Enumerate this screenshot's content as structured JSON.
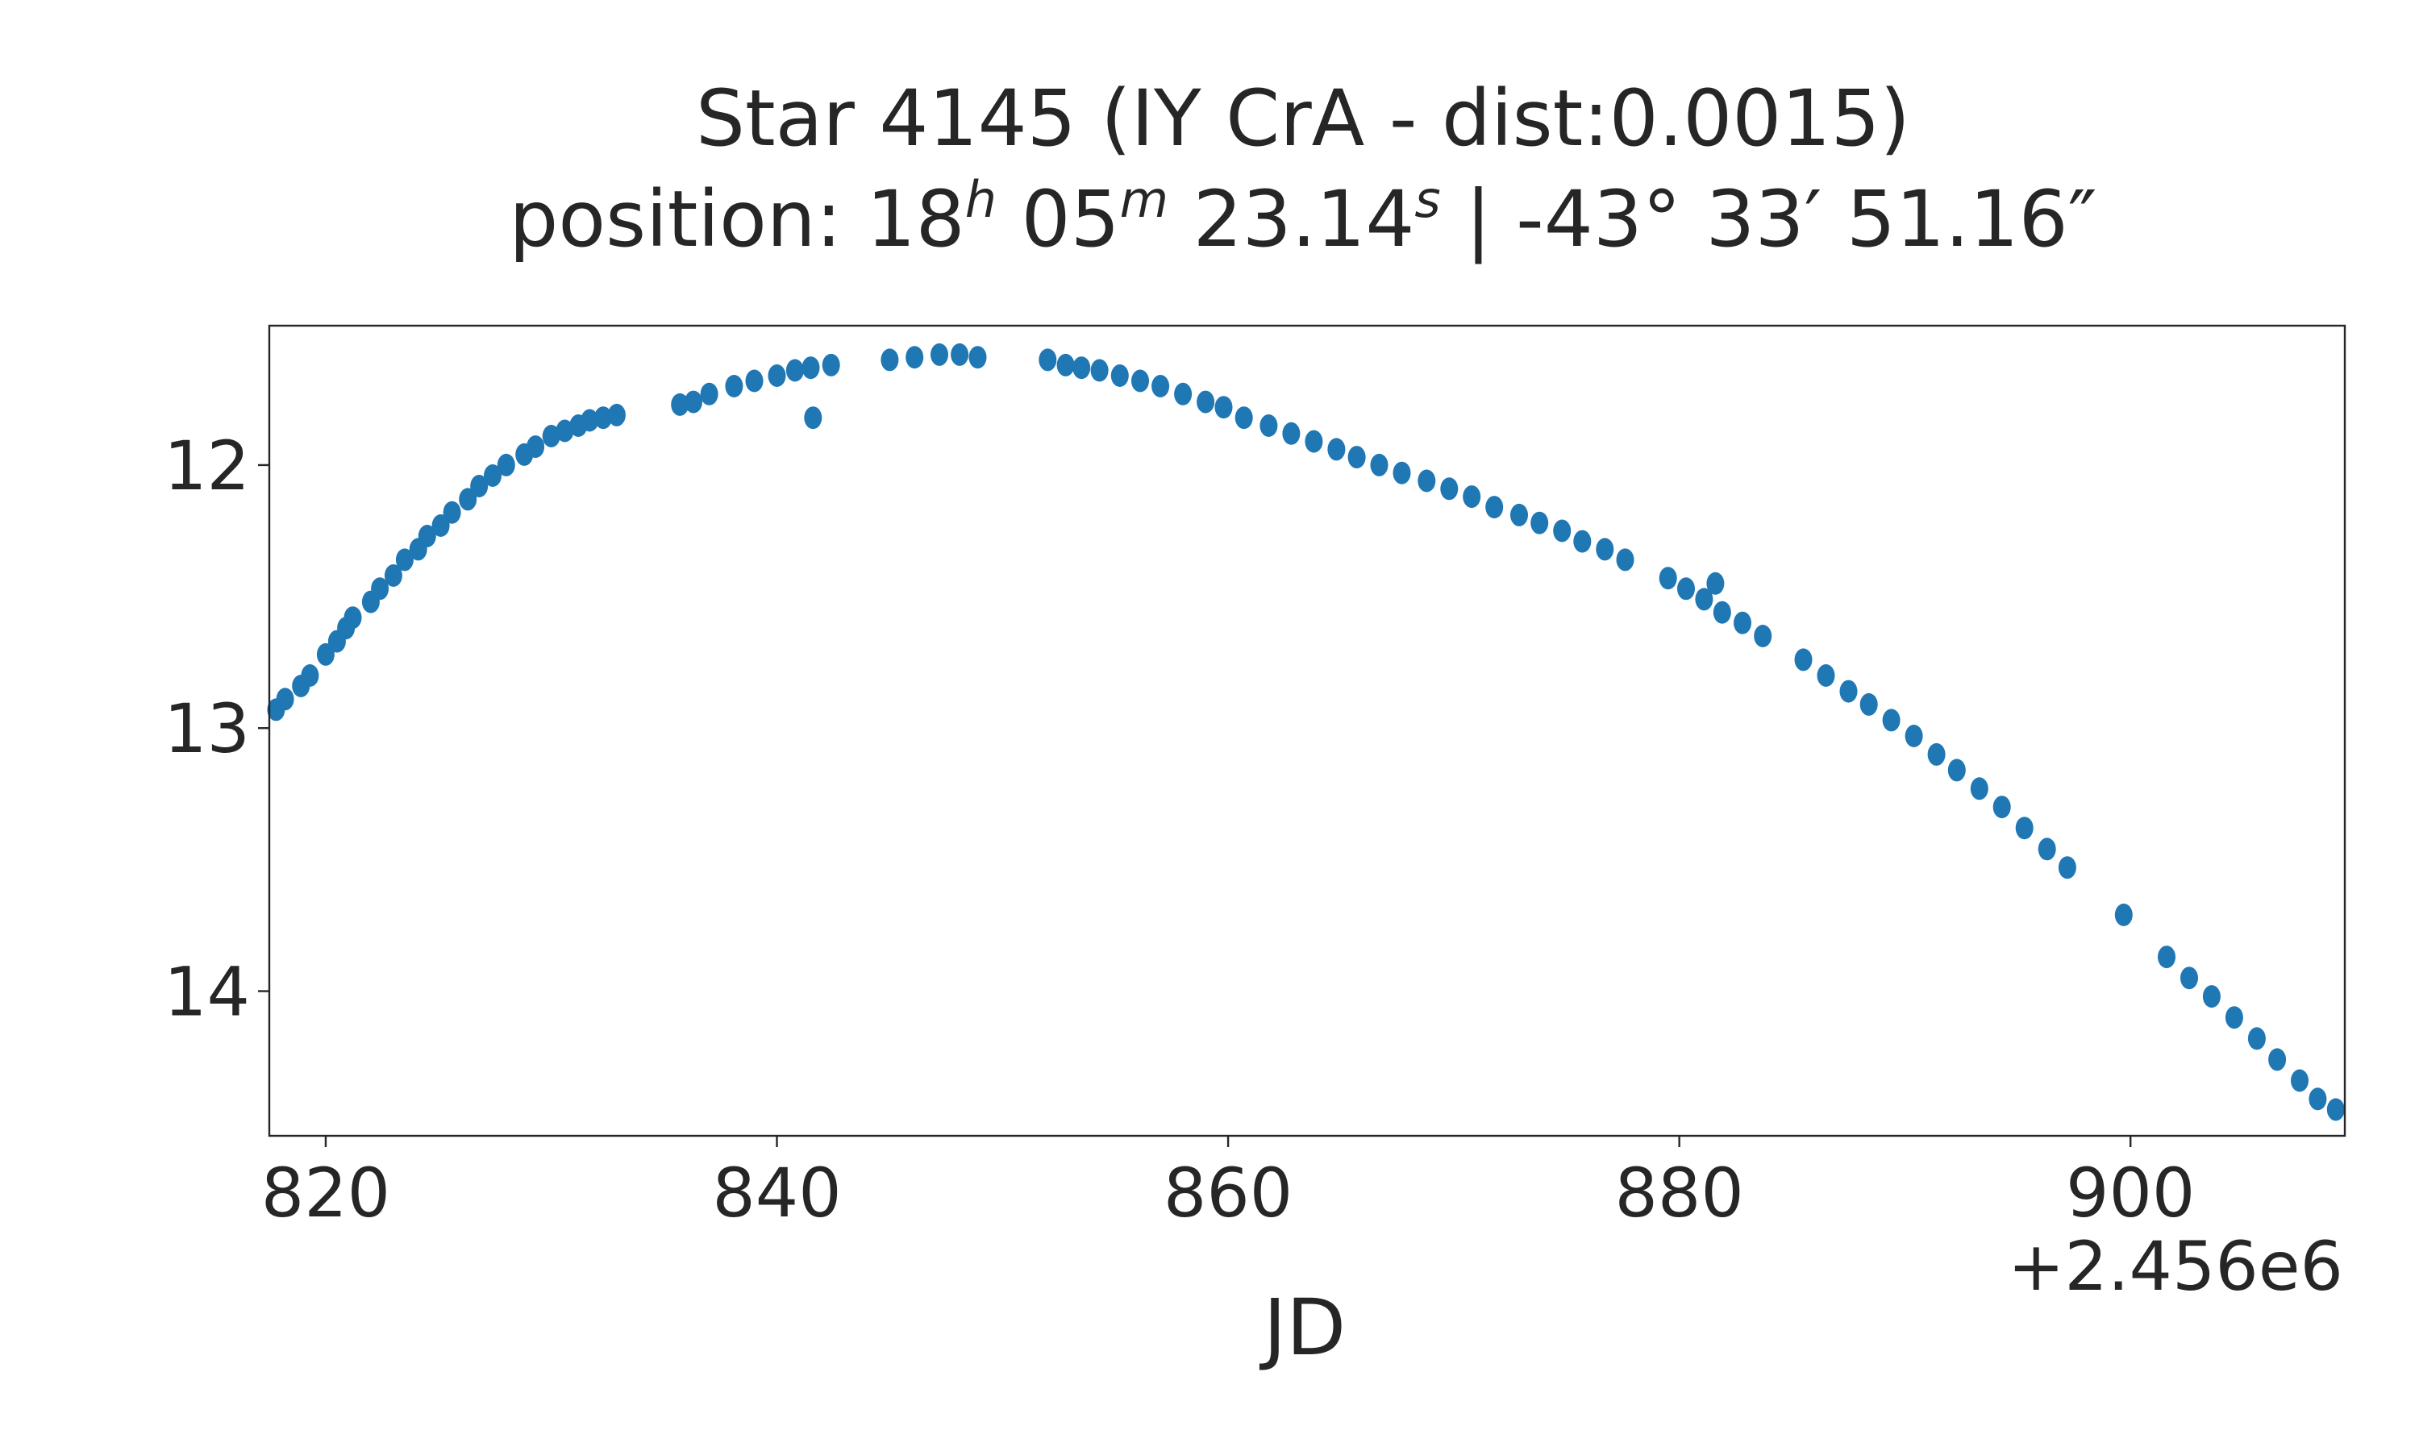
{
  "chart_data": {
    "type": "scatter",
    "title": {
      "line1": "Star 4145 (IY CrA - dist:0.0015)",
      "line2_prefix": "position: 18",
      "ra_h_sup": "h",
      "ra_m_val": " 05",
      "ra_m_sup": "m",
      "ra_s_val": " 23.14",
      "ra_s_sup": "s",
      "dec_text": " | -43° 33′ 51.16″"
    },
    "xlabel": "JD",
    "ylabel": "",
    "x_offset_label": "+2.456e6",
    "xlim": [
      817.5,
      909.5
    ],
    "ylim": [
      14.55,
      11.47
    ],
    "y_inverted": true,
    "grid": false,
    "marker_color": "#1f77b4",
    "xticks": [
      {
        "value": 820,
        "label": "820"
      },
      {
        "value": 840,
        "label": "840"
      },
      {
        "value": 860,
        "label": "860"
      },
      {
        "value": 880,
        "label": "880"
      },
      {
        "value": 900,
        "label": "900"
      }
    ],
    "yticks": [
      {
        "value": 12,
        "label": "12"
      },
      {
        "value": 13,
        "label": "13"
      },
      {
        "value": 14,
        "label": "14"
      }
    ],
    "series": [
      {
        "x": [
          817.8,
          818.2,
          818.9,
          819.3,
          820.0,
          820.5,
          820.9,
          821.2,
          822.0,
          822.4,
          823.0,
          823.5,
          824.1,
          824.5,
          825.1,
          825.6,
          826.3,
          826.8,
          827.4,
          828.0,
          828.8,
          829.3,
          830.0,
          830.6,
          831.2,
          831.7,
          832.3,
          832.9,
          835.7,
          836.3,
          837.0,
          838.1,
          839.0,
          840.0,
          840.8,
          841.5,
          842.4,
          845.0,
          846.1,
          847.2,
          848.1,
          848.9,
          852.0,
          852.8,
          853.5,
          854.3,
          855.2,
          856.1,
          857.0,
          858.0,
          859.0,
          859.8,
          860.7,
          861.8,
          862.8,
          863.8,
          864.8,
          865.7,
          866.7,
          867.7,
          868.8,
          869.8,
          870.8,
          871.8,
          872.9,
          873.8,
          874.8,
          875.7,
          876.7,
          877.6,
          879.5,
          880.3,
          881.1,
          881.9,
          882.8,
          883.7,
          885.5,
          886.5,
          887.5,
          888.4,
          889.4,
          890.4,
          891.4,
          892.3,
          893.3,
          894.3,
          895.3,
          896.3,
          897.2,
          899.7,
          901.6,
          902.6,
          903.6,
          904.6,
          905.6,
          906.5,
          907.5,
          908.3,
          909.1,
          841.6,
          881.6
        ],
        "y": [
          12.93,
          12.89,
          12.84,
          12.8,
          12.72,
          12.67,
          12.62,
          12.58,
          12.52,
          12.47,
          12.42,
          12.36,
          12.32,
          12.27,
          12.23,
          12.18,
          12.13,
          12.08,
          12.04,
          12.0,
          11.96,
          11.93,
          11.89,
          11.87,
          11.85,
          11.83,
          11.82,
          11.81,
          11.77,
          11.76,
          11.73,
          11.7,
          11.68,
          11.66,
          11.64,
          11.63,
          11.62,
          11.6,
          11.59,
          11.58,
          11.58,
          11.59,
          11.6,
          11.62,
          11.63,
          11.64,
          11.66,
          11.68,
          11.7,
          11.73,
          11.76,
          11.78,
          11.82,
          11.85,
          11.88,
          11.91,
          11.94,
          11.97,
          12.0,
          12.03,
          12.06,
          12.09,
          12.12,
          12.16,
          12.19,
          12.22,
          12.25,
          12.29,
          12.32,
          12.36,
          12.43,
          12.47,
          12.51,
          12.56,
          12.6,
          12.65,
          12.74,
          12.8,
          12.86,
          12.91,
          12.97,
          13.03,
          13.1,
          13.16,
          13.23,
          13.3,
          13.38,
          13.46,
          13.53,
          13.71,
          13.87,
          13.95,
          14.02,
          14.1,
          14.18,
          14.26,
          14.34,
          14.41,
          14.45,
          11.82,
          12.45
        ]
      }
    ]
  }
}
